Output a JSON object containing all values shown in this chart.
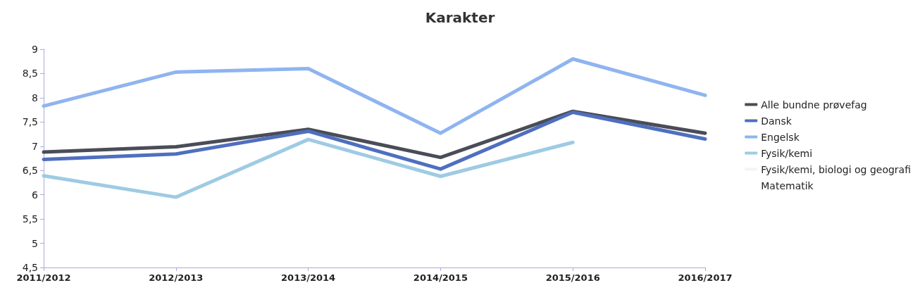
{
  "chart_data": {
    "type": "line",
    "title": "Karakter",
    "categories": [
      "2011/2012",
      "2012/2013",
      "2013/2014",
      "2014/2015",
      "2015/2016",
      "2016/2017"
    ],
    "ylim": [
      4.5,
      9
    ],
    "yticks": [
      {
        "value": 4.5,
        "label": "4,5"
      },
      5,
      {
        "value": 5.5,
        "label": "5,5"
      },
      6,
      {
        "value": 6.5,
        "label": "6,5"
      },
      7,
      {
        "value": 7.5,
        "label": "7,5"
      },
      8,
      {
        "value": 8.5,
        "label": "8,5"
      },
      9
    ],
    "grid": false,
    "legend": "right",
    "marker": "none",
    "line_style": "solid",
    "series": [
      {
        "name": "Alle bundne prøvefag",
        "color": "#4a4d57",
        "values": [
          6.88,
          6.99,
          7.35,
          6.77,
          7.72,
          7.27
        ]
      },
      {
        "name": "Dansk",
        "color": "#4f6fbf",
        "values": [
          6.73,
          6.84,
          7.31,
          6.53,
          7.7,
          7.15
        ]
      },
      {
        "name": "Engelsk",
        "color": "#8fb4f0",
        "values": [
          7.83,
          8.53,
          8.6,
          7.27,
          8.8,
          8.05
        ]
      },
      {
        "name": "Fysik/kemi",
        "color": "#9ecbe3",
        "values": [
          6.39,
          5.95,
          7.14,
          6.38,
          7.08,
          null
        ]
      },
      {
        "name": "Fysik/kemi, biologi og geografi",
        "color": "#f2f4fa",
        "values": [
          null,
          null,
          null,
          null,
          null,
          null
        ]
      },
      {
        "name": "Matematik",
        "values": [
          null,
          null,
          null,
          null,
          null,
          null
        ]
      }
    ]
  }
}
